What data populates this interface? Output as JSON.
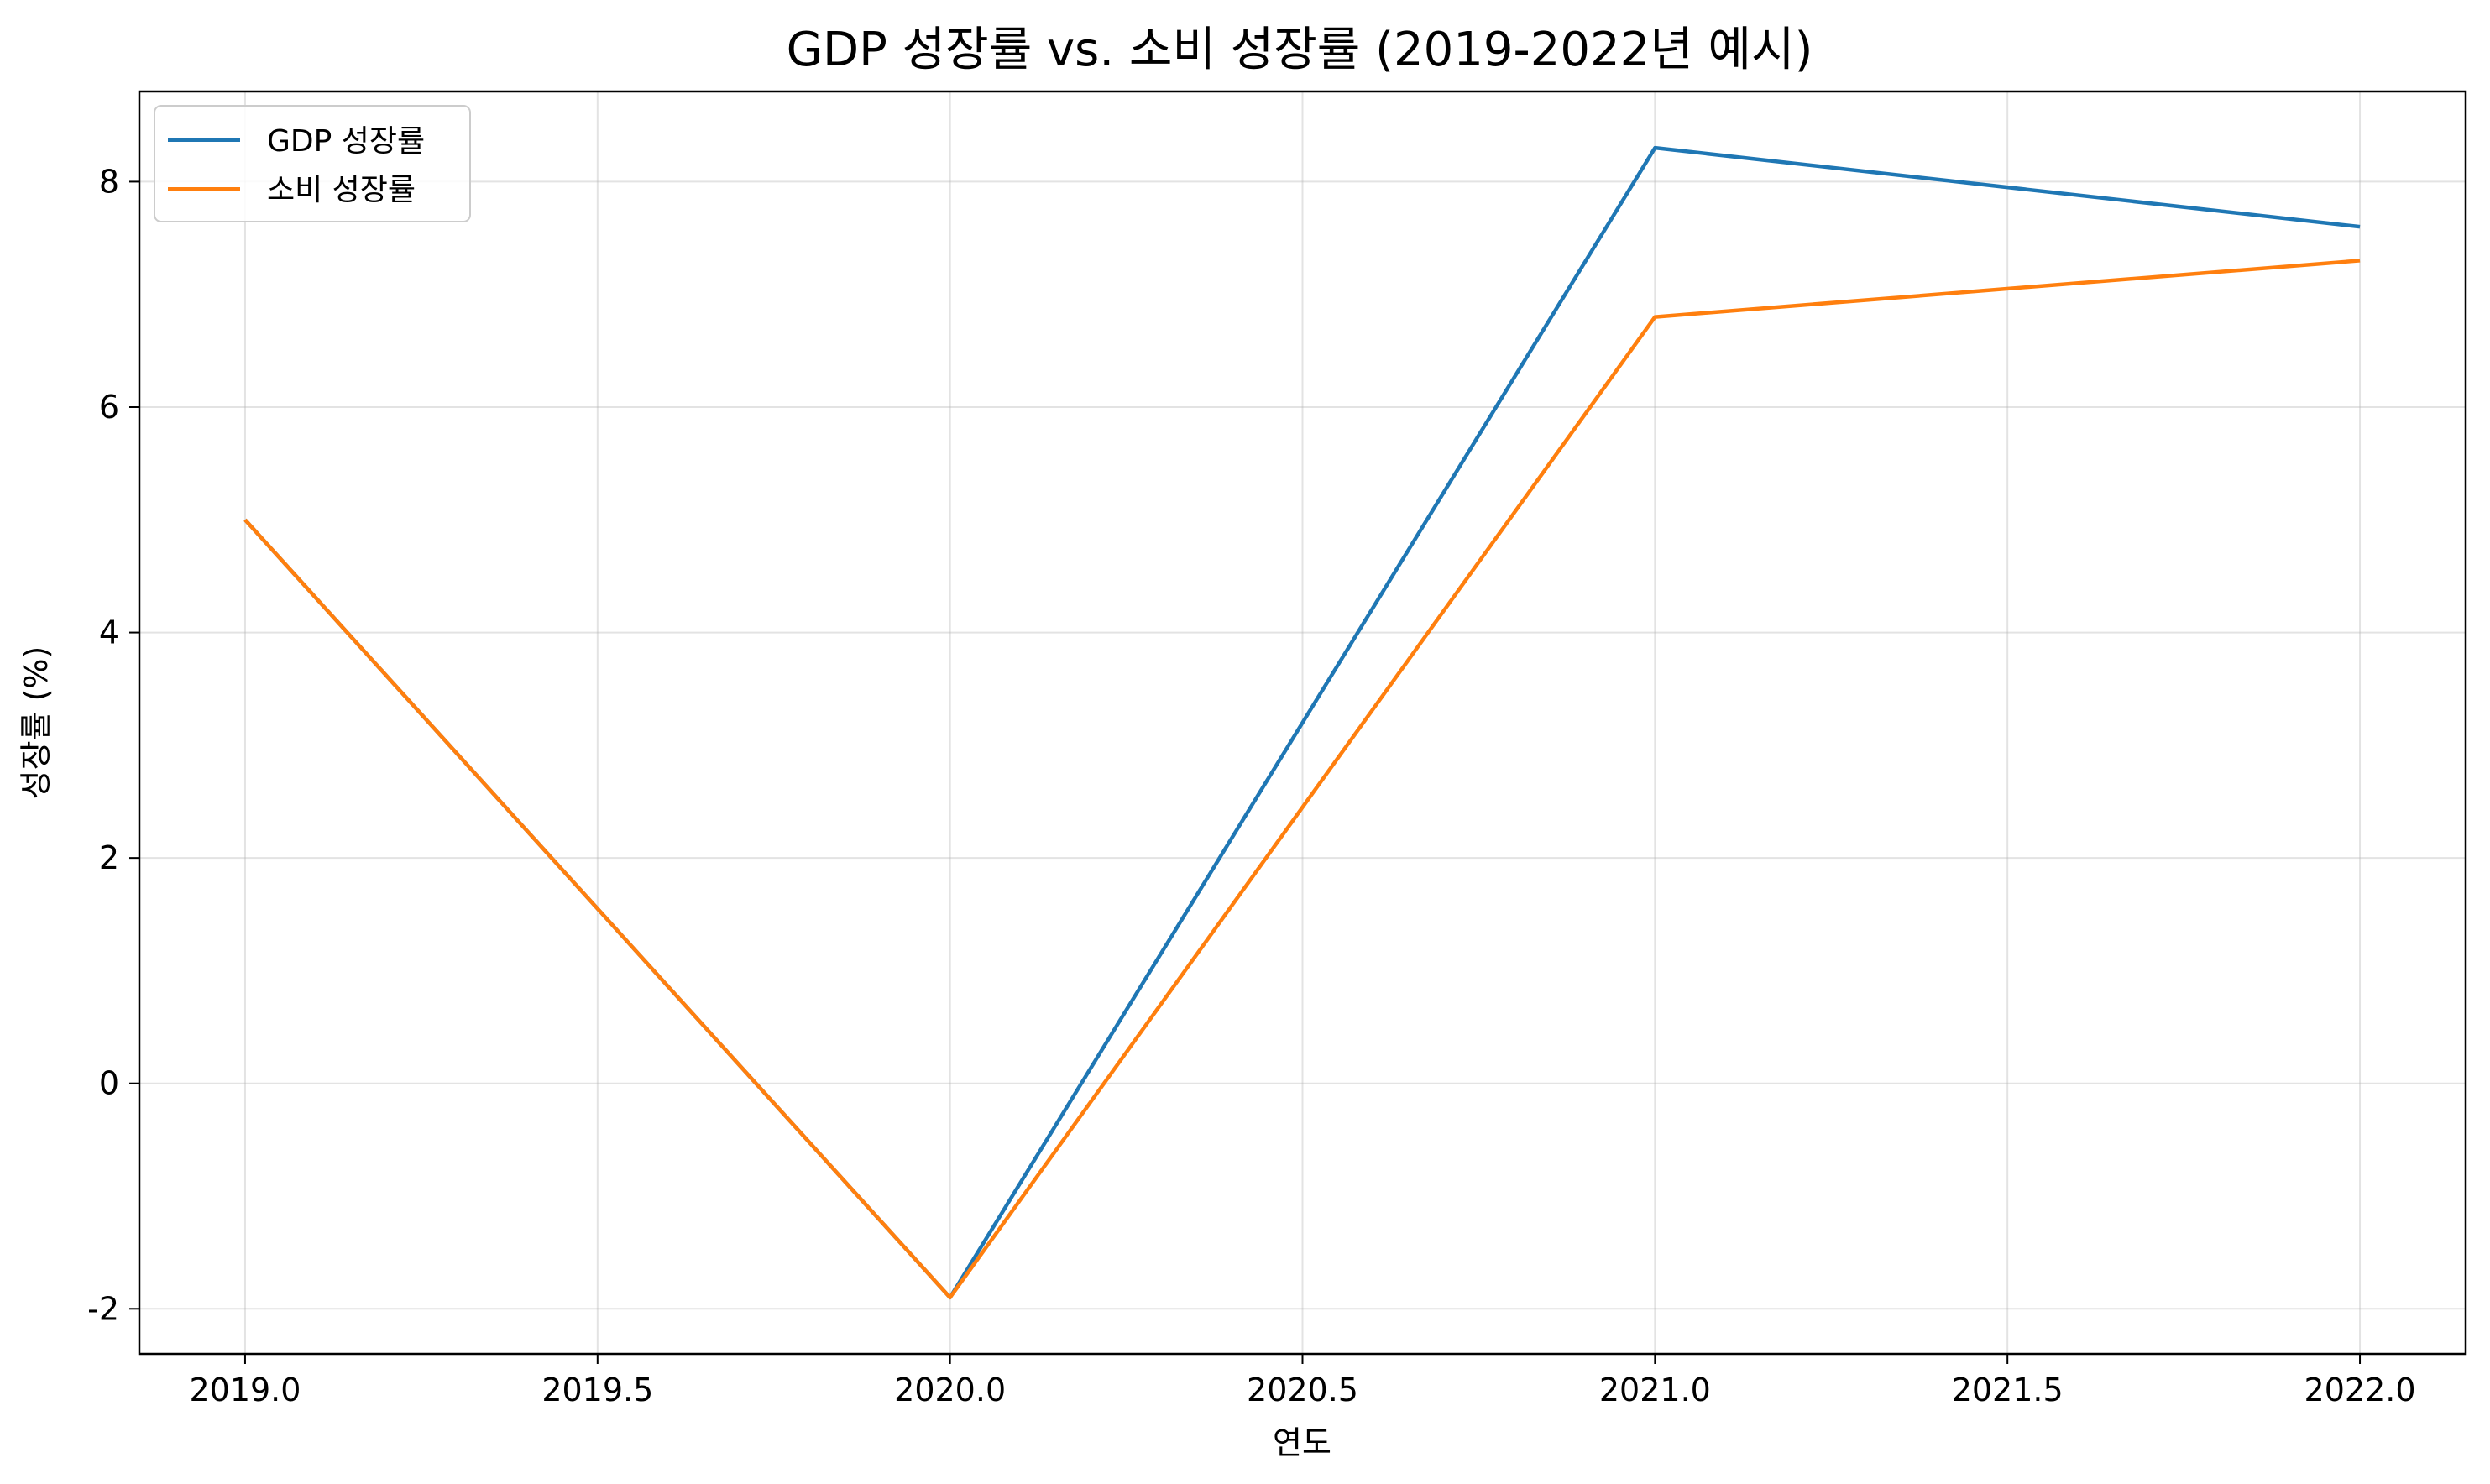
{
  "chart_data": {
    "type": "line",
    "title": "GDP 성장률 vs. 소비 성장률 (2019-2022년 예시)",
    "xlabel": "연도",
    "ylabel": "성장률 (%)",
    "xlim": [
      2018.85,
      2022.15
    ],
    "ylim": [
      -2.4,
      8.8
    ],
    "x_ticks": [
      2019.0,
      2019.5,
      2020.0,
      2020.5,
      2021.0,
      2021.5,
      2022.0
    ],
    "x_tick_labels": [
      "2019.0",
      "2019.5",
      "2020.0",
      "2020.5",
      "2021.0",
      "2021.5",
      "2022.0"
    ],
    "y_ticks": [
      -2,
      0,
      2,
      4,
      6,
      8
    ],
    "y_tick_labels": [
      "-2",
      "0",
      "2",
      "4",
      "6",
      "8"
    ],
    "grid": true,
    "legend_position": "top-left",
    "x": [
      2019,
      2020,
      2021,
      2022
    ],
    "series": [
      {
        "name": "GDP 성장률",
        "color": "#1f77b4",
        "values": [
          5.0,
          -1.9,
          8.3,
          7.6
        ]
      },
      {
        "name": "소비 성장률",
        "color": "#ff7f0e",
        "values": [
          5.0,
          -1.9,
          6.8,
          7.3
        ]
      }
    ]
  }
}
